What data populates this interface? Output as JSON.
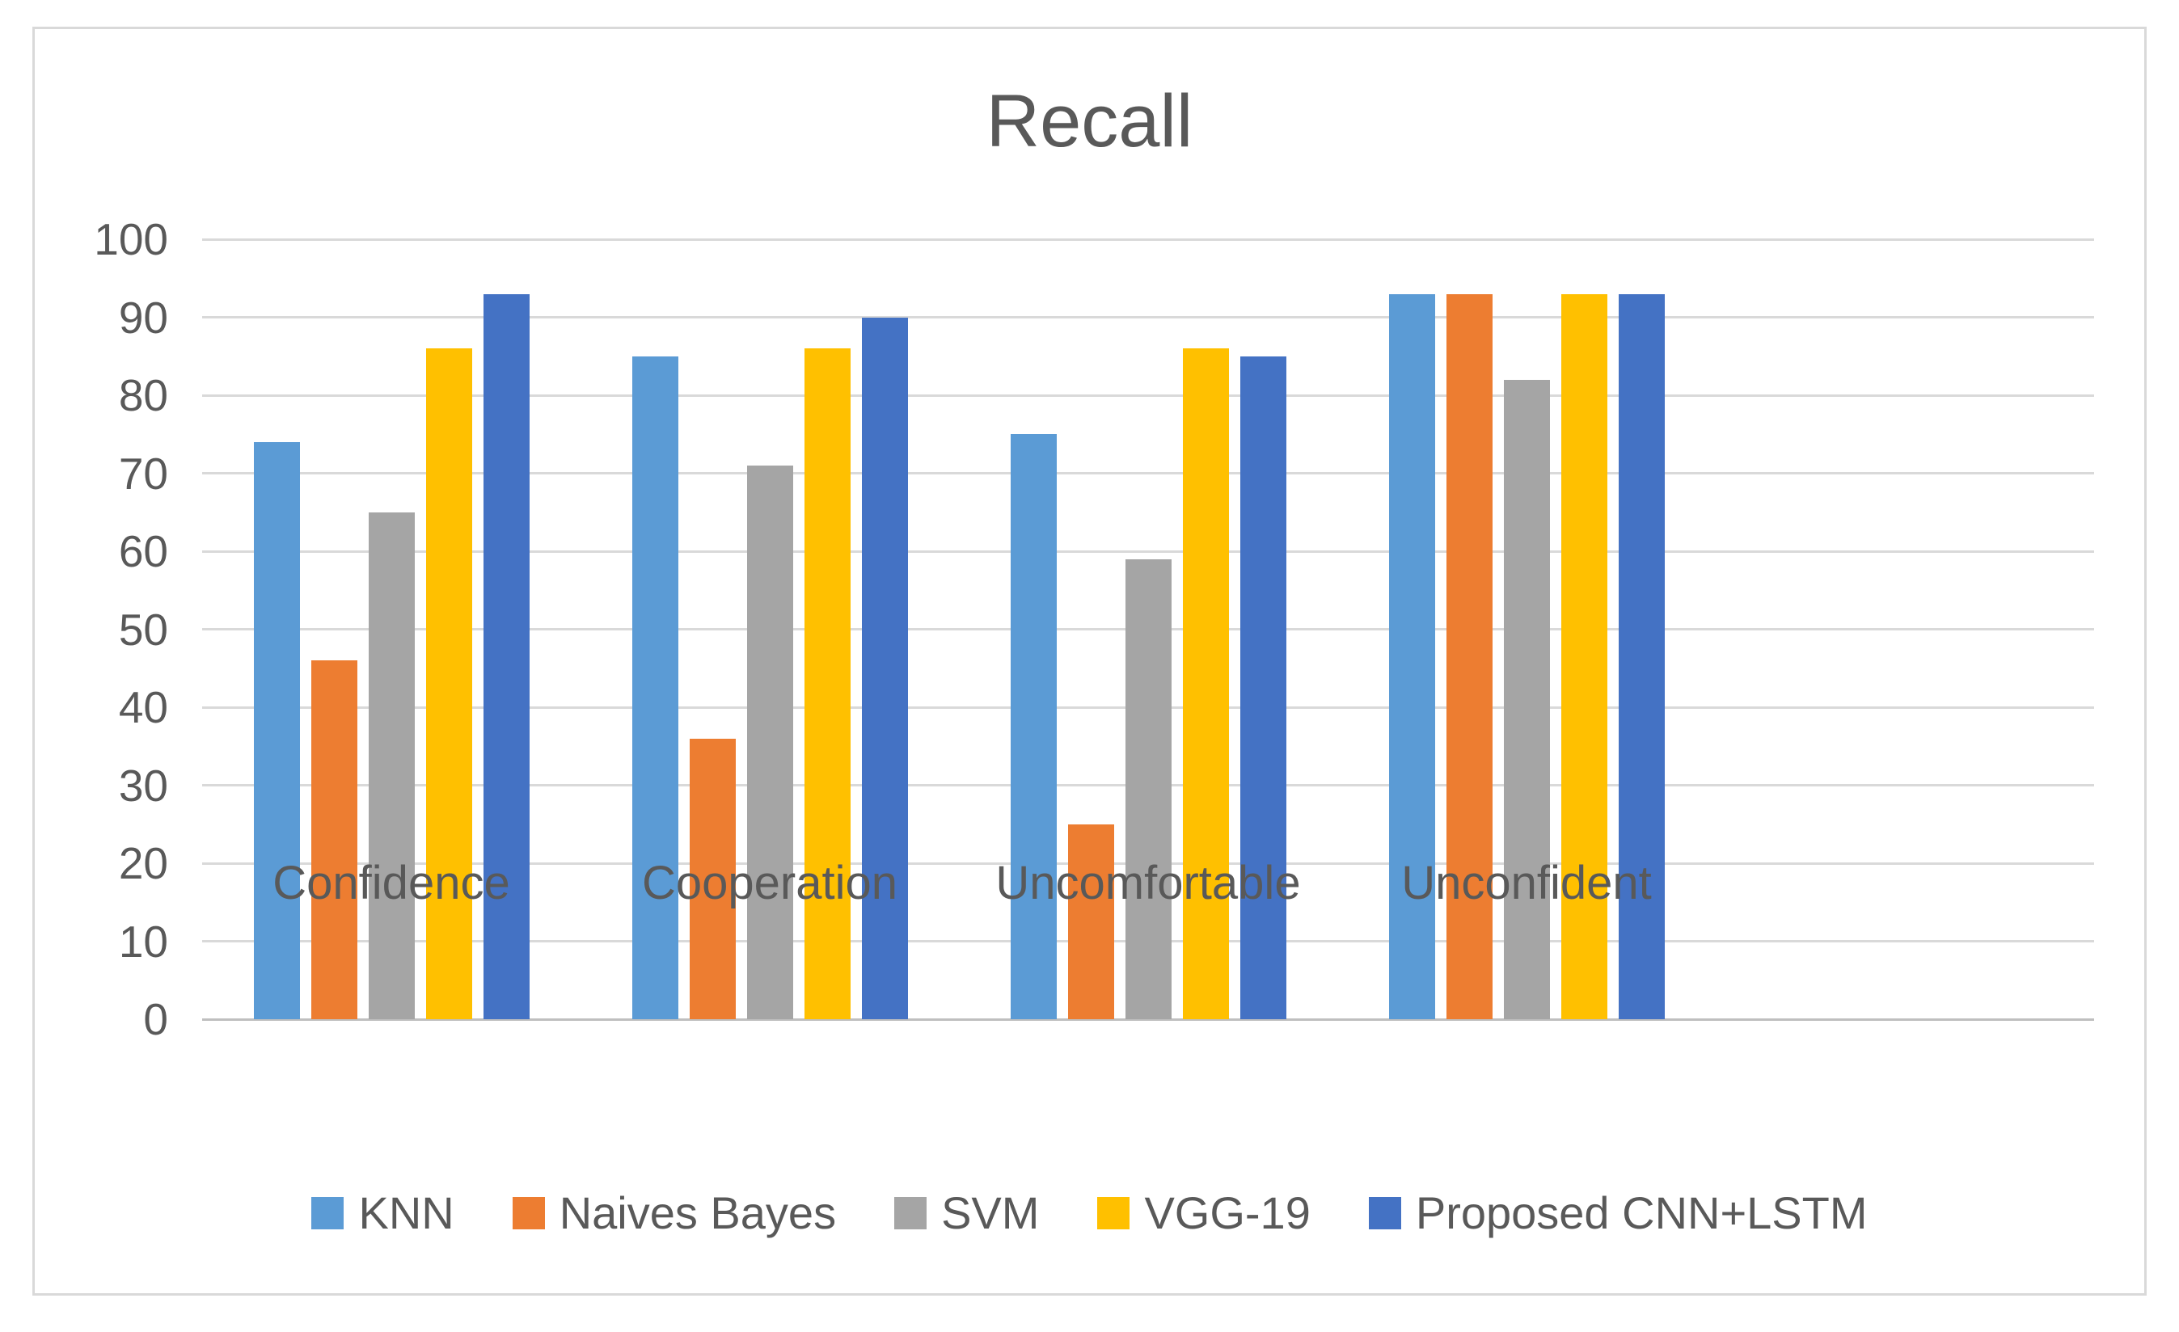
{
  "chart": {
    "title": "Recall",
    "text_color": "#595959",
    "gridline_color": "#D9D9D9",
    "axis_line_color": "#BFBFBF",
    "frame_border_color": "#D9D9D9",
    "background_color": "#FFFFFF"
  },
  "chart_data": {
    "type": "bar",
    "title": "Recall",
    "categories": [
      "Confidence",
      "Cooperation",
      "Uncomfortable",
      "Unconfident"
    ],
    "series": [
      {
        "name": "KNN",
        "color": "#5B9BD5",
        "values": [
          74,
          85,
          75,
          93
        ]
      },
      {
        "name": "Naives Bayes",
        "color": "#ED7D31",
        "values": [
          46,
          36,
          25,
          93
        ]
      },
      {
        "name": "SVM",
        "color": "#A5A5A5",
        "values": [
          65,
          71,
          59,
          82
        ]
      },
      {
        "name": "VGG-19",
        "color": "#FFC000",
        "values": [
          86,
          86,
          86,
          93
        ]
      },
      {
        "name": "Proposed CNN+LSTM",
        "color": "#4472C4",
        "values": [
          93,
          90,
          85,
          93
        ]
      }
    ],
    "xlabel": "",
    "ylabel": "",
    "ylim": [
      0,
      100
    ],
    "yticks": [
      0,
      10,
      20,
      30,
      40,
      50,
      60,
      70,
      80,
      90,
      100
    ],
    "grid": true,
    "legend_position": "bottom",
    "empty_trailing_category_slots": 1
  }
}
